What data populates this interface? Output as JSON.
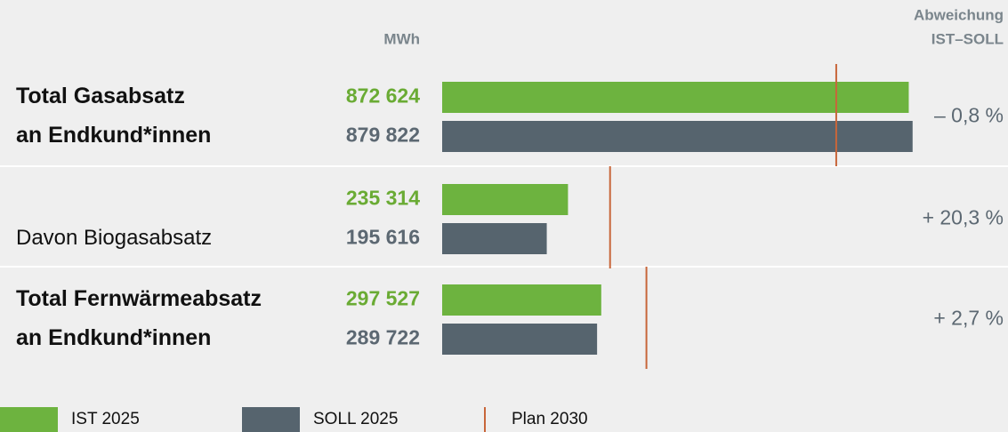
{
  "chart_data": {
    "type": "bar",
    "orientation": "horizontal",
    "value_axis_label": "MWh",
    "deviation_header": [
      "Abweichung",
      "IST–SOLL"
    ],
    "categories": [
      [
        "Total Gasabsatz",
        "an Endkund*innen"
      ],
      [
        "Davon Biogasabsatz"
      ],
      [
        "Total Fernwärmeabsatz",
        "an Endkund*innen"
      ]
    ],
    "category_bold": [
      true,
      false,
      true
    ],
    "series": [
      {
        "name": "IST 2025",
        "color": "#6db33f",
        "label_color": "#6aab34",
        "values": [
          872624,
          235314,
          297527
        ],
        "value_labels": [
          "872 624",
          "235 314",
          "297 527"
        ]
      },
      {
        "name": "SOLL 2025",
        "color": "#56646e",
        "label_color": "#5c6872",
        "values": [
          879822,
          195616,
          289722
        ],
        "value_labels": [
          "879 822",
          "195 616",
          "289 722"
        ]
      }
    ],
    "plan": {
      "name": "Plan 2030",
      "color": "#c8663a",
      "values": [
        737000,
        314000,
        382000
      ]
    },
    "deviations": [
      "– 0,8 %",
      "+ 20,3 %",
      "+ 2,7 %"
    ],
    "xlim": [
      0,
      1000000
    ]
  }
}
